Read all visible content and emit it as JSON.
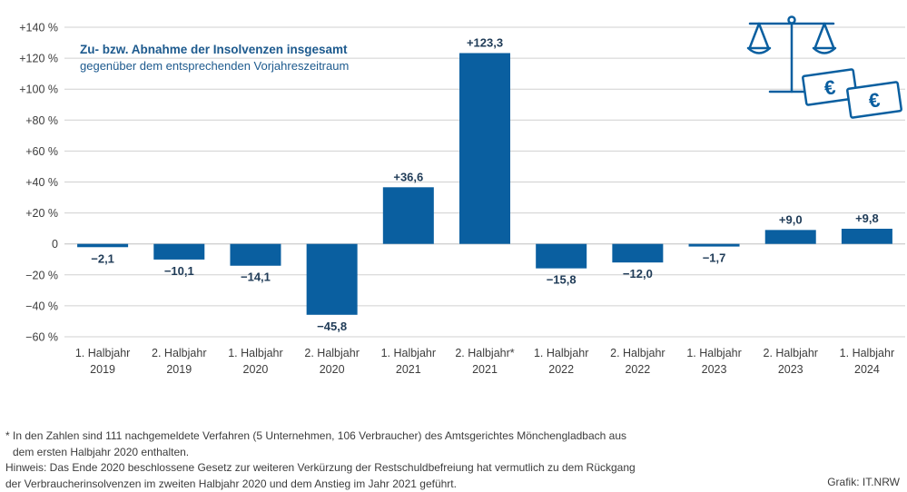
{
  "chart_data": {
    "type": "bar",
    "title": "Zu- bzw. Abnahme der Insolvenzen insgesamt",
    "subtitle": "gegenüber dem entsprechenden Vorjahreszeitraum",
    "categories": [
      [
        "1. Halbjahr",
        "2019"
      ],
      [
        "2. Halbjahr",
        "2019"
      ],
      [
        "1. Halbjahr",
        "2020"
      ],
      [
        "2. Halbjahr",
        "2020"
      ],
      [
        "1. Halbjahr",
        "2021"
      ],
      [
        "2. Halbjahr*",
        "2021"
      ],
      [
        "1. Halbjahr",
        "2022"
      ],
      [
        "2. Halbjahr",
        "2022"
      ],
      [
        "1. Halbjahr",
        "2023"
      ],
      [
        "2. Halbjahr",
        "2023"
      ],
      [
        "1. Halbjahr",
        "2024"
      ]
    ],
    "values": [
      -2.1,
      -10.1,
      -14.1,
      -45.8,
      36.6,
      123.3,
      -15.8,
      -12.0,
      -1.7,
      9.0,
      9.8
    ],
    "value_labels": [
      "−2,1",
      "−10,1",
      "−14,1",
      "−45,8",
      "+36,6",
      "+123,3",
      "−15,8",
      "−12,0",
      "−1,7",
      "+9,0",
      "+9,8"
    ],
    "ylim": [
      -60,
      140
    ],
    "yticks": [
      140,
      120,
      100,
      80,
      60,
      40,
      20,
      0,
      -20,
      -40,
      -60
    ],
    "ytick_labels": [
      "+140 %",
      "+120 %",
      "+100 %",
      "+80 %",
      "+60 %",
      "+40 %",
      "+20 %",
      "0",
      "−20 %",
      "−40 %",
      "−60 %"
    ],
    "grid": true,
    "bar_color": "#0a5fa0",
    "grid_color": "#d0d0d0",
    "text_color": "#3c3c3c",
    "title_color": "#1d5a8e",
    "icon": "scale-and-euro-banknotes-icon"
  },
  "footnotes": {
    "line1": "* In den Zahlen sind 111 nachgemeldete Verfahren (5 Unternehmen, 106 Verbraucher) des Amtsgerichtes Mönchengladbach aus",
    "line2": "dem ersten Halbjahr 2020 enthalten.",
    "line3": "Hinweis: Das Ende 2020 beschlossene Gesetz zur weiteren Verkürzung der Restschuldbefreiung hat vermutlich zu dem Rückgang",
    "line4": "der Verbraucherinsolvenzen im zweiten Halbjahr 2020 und dem Anstieg im Jahr 2021 geführt."
  },
  "credit": "Grafik: IT.NRW",
  "euro_sign": "€"
}
